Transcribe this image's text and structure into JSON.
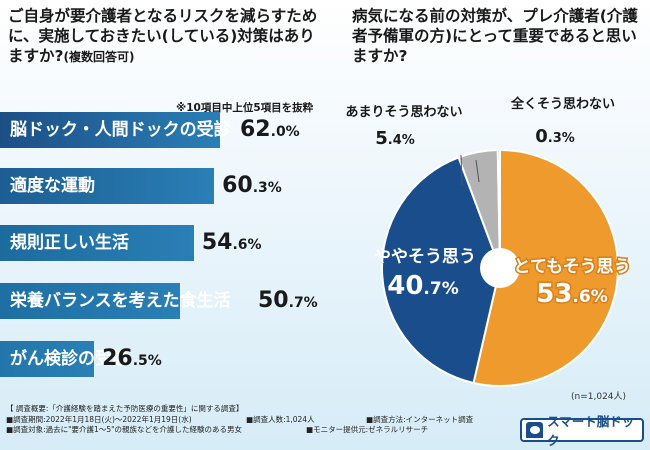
{
  "left": {
    "question": "ご自身が要介護者となるリスクを減らすために、実施しておきたい(している)対策はありますか?",
    "question_suffix": "(複数回答可)",
    "note": "※10項目中上位5項目を抜粋"
  },
  "right": {
    "question": "病気になる前の対策が、プレ介護者(介護者予備軍の方)にとって重要であると思いますか?"
  },
  "colors": {
    "bar": "#1f5f95",
    "bar_dark": "#1c4f86",
    "orange": "#ef9a2c",
    "blue": "#1a4d8c",
    "gray": "#b3b3b3"
  },
  "chart_data": [
    {
      "type": "bar",
      "orientation": "horizontal",
      "categories": [
        "脳ドック・人間ドックの受診",
        "適度な運動",
        "規則正しい生活",
        "栄養バランスを考えた食生活",
        "がん検診の受診"
      ],
      "values": [
        62.0,
        60.3,
        54.6,
        50.7,
        26.5
      ],
      "value_labels": [
        [
          "62",
          ".0%"
        ],
        [
          "60",
          ".3%"
        ],
        [
          "54",
          ".6%"
        ],
        [
          "50",
          ".7%"
        ],
        [
          "26",
          ".5%"
        ]
      ],
      "unit": "%"
    },
    {
      "type": "pie",
      "categories": [
        "とてもそう思う",
        "ややそう思う",
        "あまりそう思わない",
        "全くそう思わない"
      ],
      "values": [
        53.6,
        40.7,
        5.4,
        0.3
      ],
      "value_labels": [
        [
          "53",
          ".6%"
        ],
        [
          "40",
          ".7%"
        ],
        [
          "5",
          ".4%"
        ],
        [
          "0",
          ".3%"
        ]
      ],
      "n_note": "(n=1,024人)"
    }
  ],
  "footer": {
    "title": "【 調査概要:「介護経験を踏まえた予防医療の重要性」に関する調査】",
    "period": "■調査期間:2022年1月18日(火)〜2022年1月19日(水)",
    "count": "■調査人数:1,024人",
    "method": "■調査方法:インターネット調査",
    "target": "■調査対象:過去に\"要介護1〜5\"の親族などを介護した経験のある男女",
    "provider": "■モニター提供元:ゼネラルリサーチ"
  },
  "logo": {
    "text": "スマート脳ドック"
  }
}
